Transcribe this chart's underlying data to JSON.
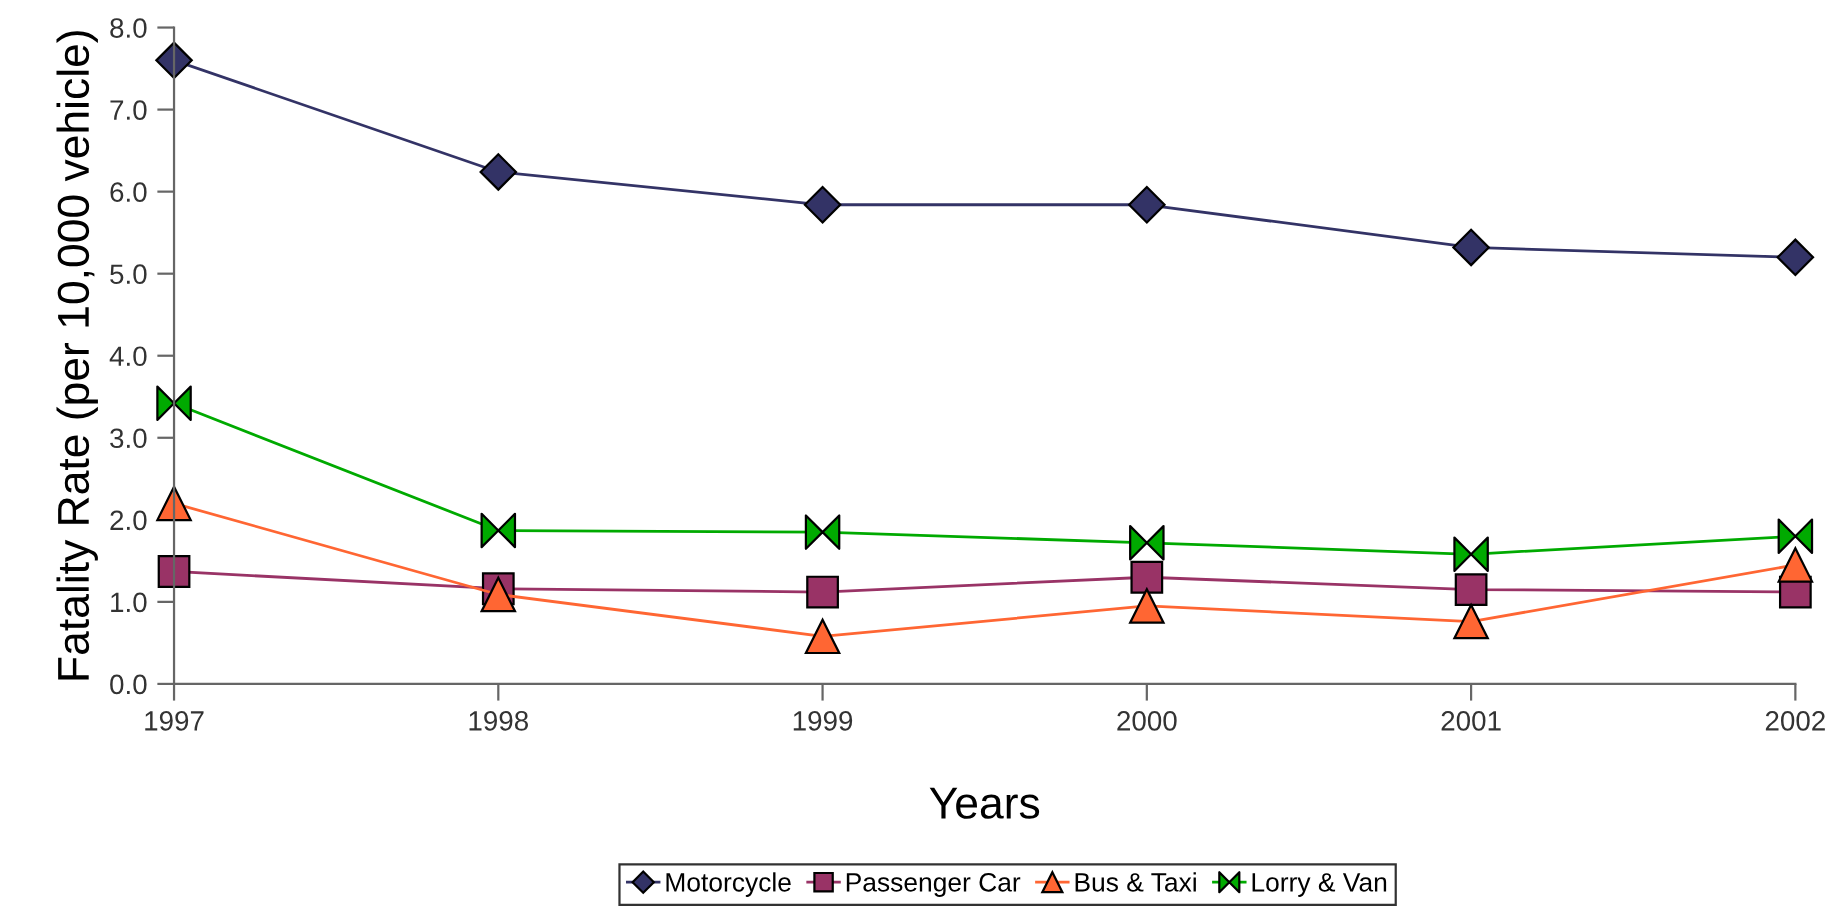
{
  "chart_data": {
    "type": "line",
    "xlabel": "Years",
    "ylabel": "Fatality Rate (per 10,000 vehicle)",
    "categories": [
      "1997",
      "1998",
      "1999",
      "2000",
      "2001",
      "2002"
    ],
    "series": [
      {
        "name": "Motorcycle",
        "color": "#333366",
        "marker": "diamond",
        "values": [
          7.6,
          6.24,
          5.84,
          5.84,
          5.32,
          5.2
        ]
      },
      {
        "name": "Passenger Car",
        "color": "#993366",
        "marker": "square",
        "values": [
          1.37,
          1.16,
          1.12,
          1.3,
          1.15,
          1.12
        ]
      },
      {
        "name": "Bus & Taxi",
        "color": "#ff6633",
        "marker": "triangle",
        "values": [
          2.2,
          1.09,
          0.58,
          0.95,
          0.76,
          1.45
        ]
      },
      {
        "name": "Lorry & Van",
        "color": "#00aa00",
        "marker": "cross",
        "values": [
          3.42,
          1.87,
          1.85,
          1.72,
          1.58,
          1.8
        ]
      }
    ],
    "ylim": [
      0,
      8
    ],
    "yticks": [
      {
        "value": 0,
        "label": "0.0"
      },
      {
        "value": 1,
        "label": "1.0"
      },
      {
        "value": 2,
        "label": "2.0"
      },
      {
        "value": 3,
        "label": "3.0"
      },
      {
        "value": 4,
        "label": "4.0"
      },
      {
        "value": 5,
        "label": "5.0"
      },
      {
        "value": 6,
        "label": "6.0"
      },
      {
        "value": 7,
        "label": "7.0"
      },
      {
        "value": 8,
        "label": "8.0"
      }
    ],
    "grid": false,
    "legend": "bottom"
  }
}
